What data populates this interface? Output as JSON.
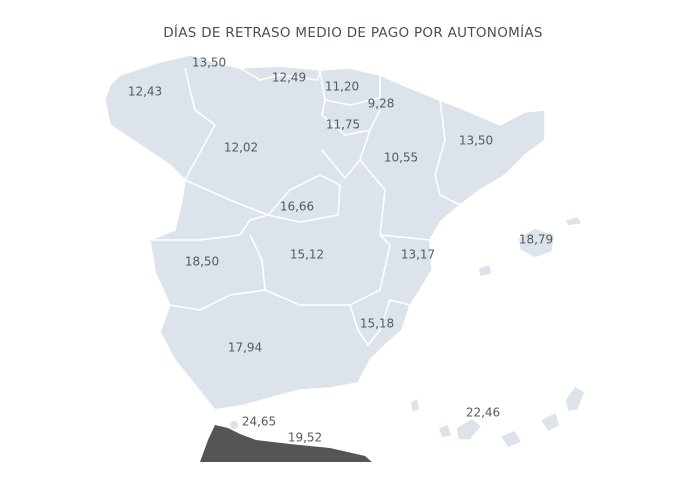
{
  "map": {
    "title": "DÍAS DE RETRASO MEDIO DE PAGO POR AUTONOMÍAS",
    "regions": [
      "12,43",
      "13,50",
      "12,49",
      "11,20",
      "9,28",
      "11,75",
      "12,02",
      "10,55",
      "13,50",
      "16,66",
      "15,12",
      "18,50",
      "13,17",
      "18,79",
      "15,18",
      "17,94",
      "24,65",
      "19,52",
      "22,46"
    ]
  }
}
